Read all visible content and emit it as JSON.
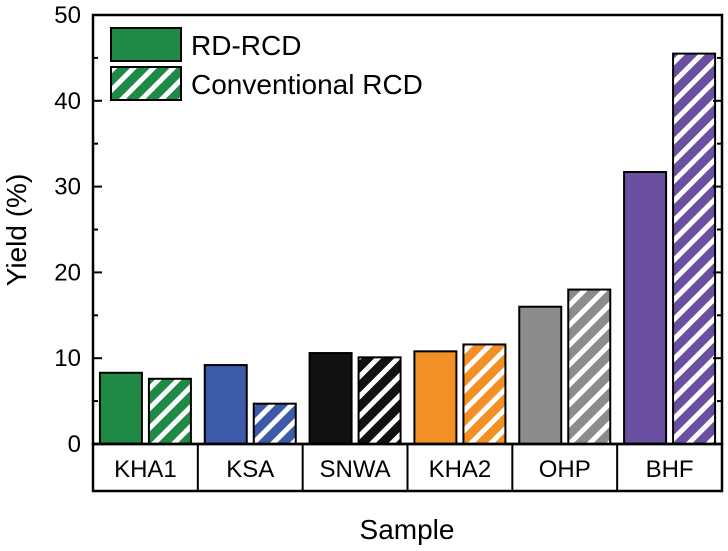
{
  "chart_data": {
    "type": "bar",
    "title": "",
    "xlabel": "Sample",
    "ylabel": "Yield (%)",
    "ylim": [
      0,
      50
    ],
    "yticks": [
      0,
      10,
      20,
      30,
      40,
      50
    ],
    "categories": [
      "KHA1",
      "KSA",
      "SNWA",
      "KHA2",
      "OHP",
      "BHF"
    ],
    "category_colors": [
      "#1e8a45",
      "#3d5aa8",
      "#111111",
      "#f39025",
      "#8c8c8c",
      "#6b4fa0"
    ],
    "series": [
      {
        "name": "RD-RCD",
        "pattern": "solid",
        "values": [
          8.3,
          9.2,
          10.6,
          10.8,
          16.0,
          31.7
        ]
      },
      {
        "name": "Conventional RCD",
        "pattern": "hatched",
        "values": [
          7.6,
          4.7,
          10.1,
          11.6,
          18.0,
          45.5
        ]
      }
    ],
    "legend": {
      "position": "top-left",
      "swatch_color": "#1e8a45"
    },
    "grid": false
  }
}
